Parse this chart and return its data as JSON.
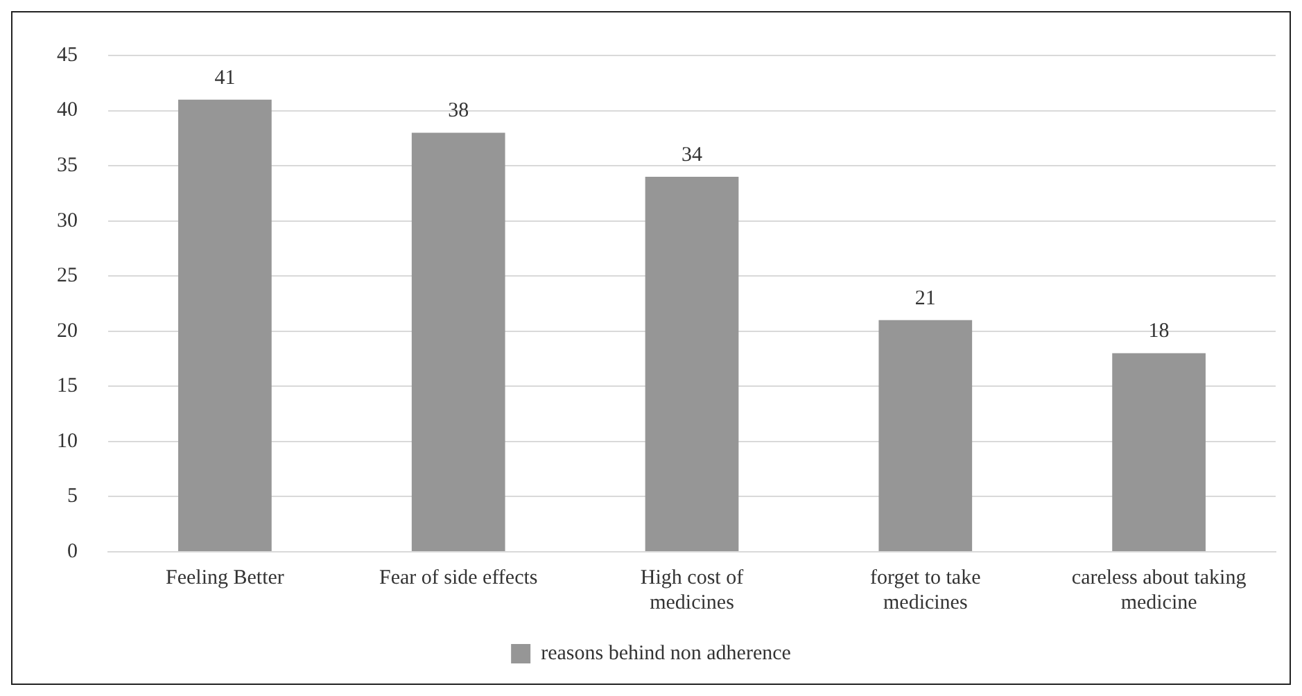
{
  "chart_data": {
    "type": "bar",
    "categories": [
      "Feeling Better",
      "Fear of side effects",
      "High cost of medicines",
      "forget to take medicines",
      "careless about taking medicine"
    ],
    "series": [
      {
        "name": "reasons behind non adherence",
        "color": "#969696",
        "values": [
          41,
          38,
          34,
          21,
          18
        ]
      }
    ],
    "ylim": [
      0,
      45
    ],
    "yticks": [
      0,
      5,
      10,
      15,
      20,
      25,
      30,
      35,
      40,
      45
    ],
    "grid": "y",
    "legend": "bottom",
    "data_labels": true
  }
}
